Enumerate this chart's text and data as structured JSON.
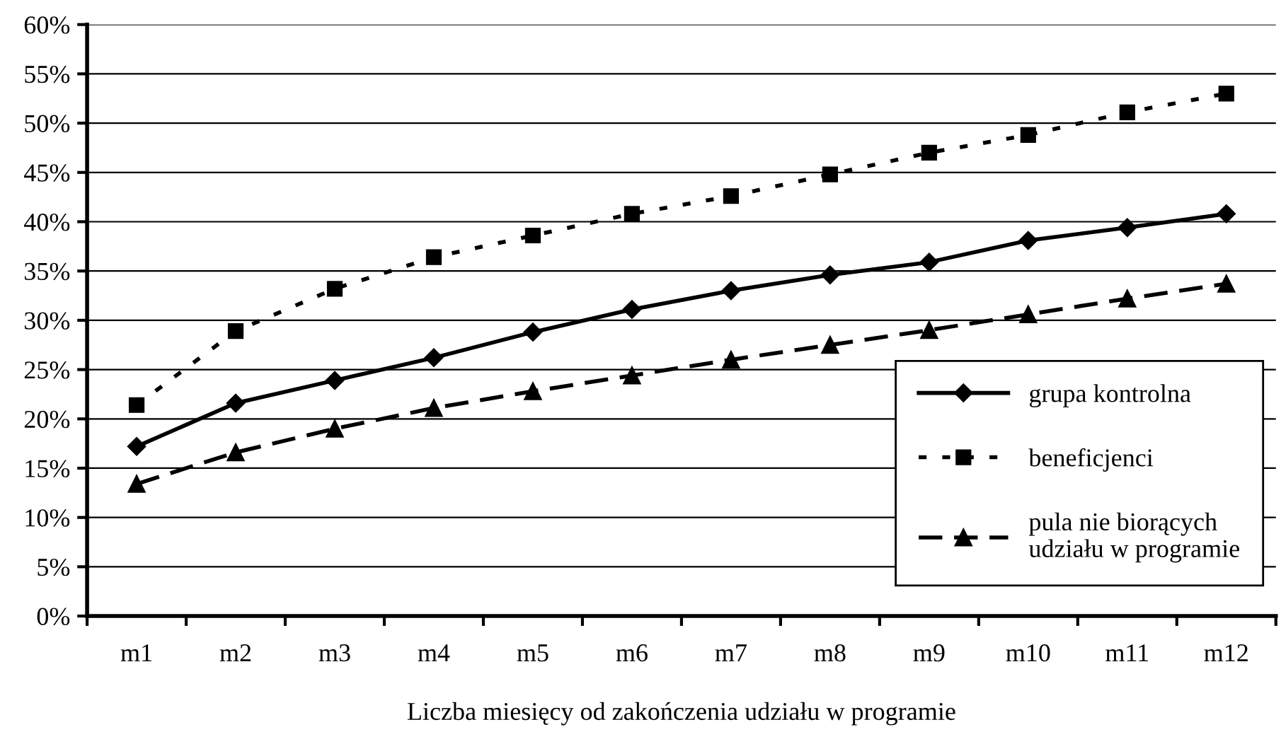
{
  "chart_data": {
    "type": "line",
    "xlabel": "Liczba miesięcy od zakończenia udziału w programie",
    "categories": [
      "m1",
      "m2",
      "m3",
      "m4",
      "m5",
      "m6",
      "m7",
      "m8",
      "m9",
      "m10",
      "m11",
      "m12"
    ],
    "series": [
      {
        "name": "grupa kontrolna",
        "color": "#000000",
        "marker": "diamond",
        "line_style": "solid",
        "values": [
          17.2,
          21.6,
          23.9,
          26.2,
          28.8,
          31.1,
          33.0,
          34.6,
          35.9,
          38.1,
          39.4,
          40.8
        ]
      },
      {
        "name": "beneficjenci",
        "color": "#000000",
        "marker": "square",
        "line_style": "dotted",
        "values": [
          21.4,
          28.9,
          33.2,
          36.4,
          38.6,
          40.8,
          42.6,
          44.8,
          47.0,
          48.8,
          51.1,
          53.0
        ]
      },
      {
        "name": "pula nie biorących\nudziału w programie",
        "color": "#000000",
        "marker": "triangle",
        "line_style": "dashed",
        "values": [
          13.4,
          16.6,
          19.0,
          21.1,
          22.8,
          24.4,
          26.0,
          27.5,
          29.0,
          30.6,
          32.2,
          33.7
        ]
      }
    ],
    "ylim": [
      0,
      60
    ],
    "yticks": [
      {
        "value": 0,
        "label": "0%"
      },
      {
        "value": 5,
        "label": "5%"
      },
      {
        "value": 10,
        "label": "10%"
      },
      {
        "value": 15,
        "label": "15%"
      },
      {
        "value": 20,
        "label": "20%"
      },
      {
        "value": 25,
        "label": "25%"
      },
      {
        "value": 30,
        "label": "30%"
      },
      {
        "value": 35,
        "label": "35%"
      },
      {
        "value": 40,
        "label": "40%"
      },
      {
        "value": 45,
        "label": "45%"
      },
      {
        "value": 50,
        "label": "50%"
      },
      {
        "value": 55,
        "label": "55%"
      },
      {
        "value": 60,
        "label": "60%"
      }
    ],
    "grid": "y",
    "legend": "bottom right"
  }
}
